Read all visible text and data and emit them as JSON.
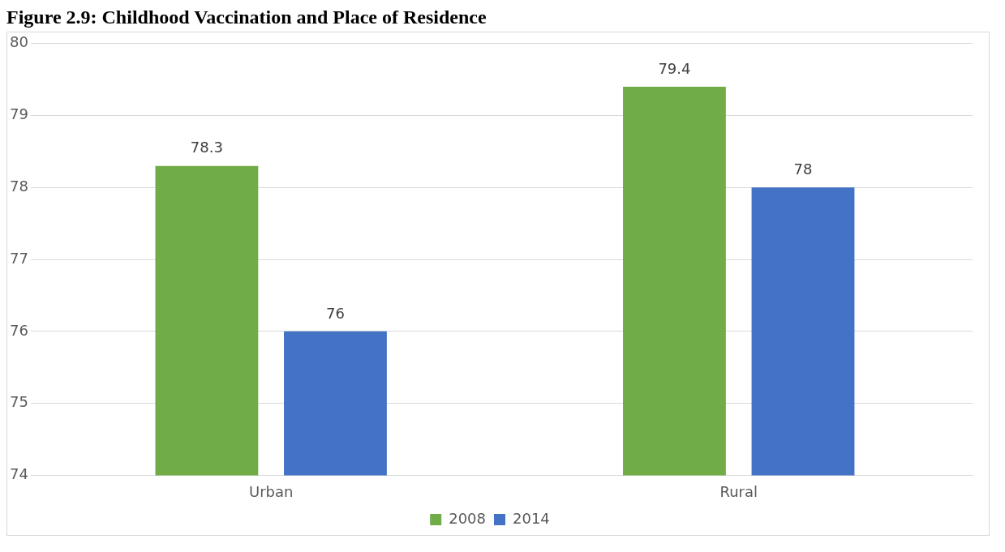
{
  "chart_data": {
    "type": "bar",
    "title": "Figure 2.9: Childhood Vaccination and Place of Residence",
    "categories": [
      "Urban",
      "Rural"
    ],
    "series": [
      {
        "name": "2008",
        "color": "#70ad47",
        "values": [
          78.3,
          79.4
        ]
      },
      {
        "name": "2014",
        "color": "#4472c4",
        "values": [
          76,
          78
        ]
      }
    ],
    "ylim": [
      74,
      80
    ],
    "yticks": [
      74,
      75,
      76,
      77,
      78,
      79,
      80
    ],
    "grid": "y",
    "legend": "bottom",
    "data_labels": true
  }
}
